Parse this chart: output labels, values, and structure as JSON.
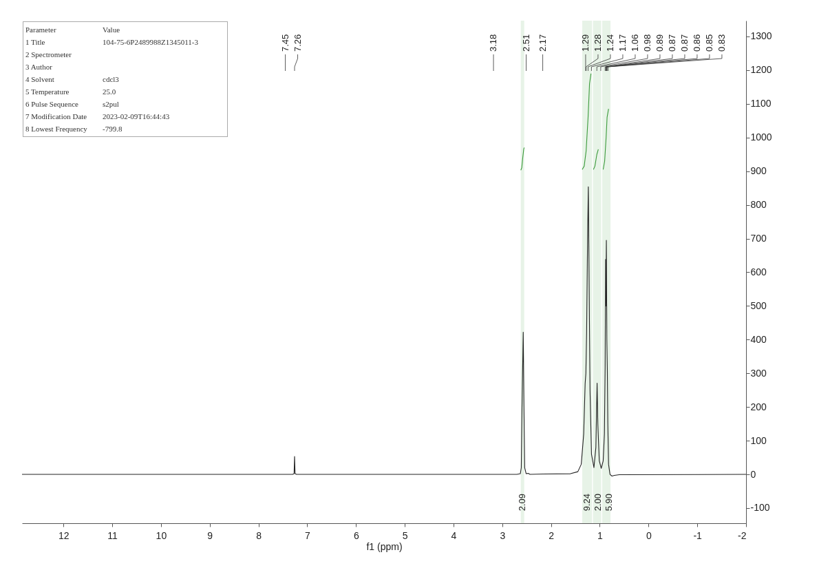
{
  "chart_data": {
    "type": "line",
    "xlabel": "f1 (ppm)",
    "xlim": [
      12.85,
      -2
    ],
    "ylim": [
      -145,
      1347
    ],
    "xticks": [
      12,
      11,
      10,
      9,
      8,
      7,
      6,
      5,
      4,
      3,
      2,
      1,
      0,
      -1,
      -2
    ],
    "yticks": [
      -100,
      0,
      100,
      200,
      300,
      400,
      500,
      600,
      700,
      800,
      900,
      1000,
      1100,
      1200,
      1300
    ],
    "bands": [
      {
        "axis": "x",
        "from": 2.62,
        "to": 2.55,
        "label": "2.09",
        "color": "#3a9a3a"
      },
      {
        "axis": "x",
        "from": 1.36,
        "to": 1.16,
        "label": "9.24",
        "color": "#3a9a3a"
      },
      {
        "axis": "x",
        "from": 1.14,
        "to": 0.97,
        "label": "2.00",
        "color": "#3a9a3a"
      },
      {
        "axis": "x",
        "from": 0.95,
        "to": 0.78,
        "label": "5.90",
        "color": "#3a9a3a"
      }
    ],
    "series": [
      {
        "color": "#222222",
        "x": [
          12.85,
          7.45,
          7.3,
          7.27,
          7.26,
          7.25,
          7.22,
          3.18,
          2.7,
          2.63,
          2.61,
          2.595,
          2.57,
          2.555,
          2.54,
          2.51,
          2.47,
          2.43,
          2.17,
          1.6,
          1.45,
          1.38,
          1.33,
          1.3,
          1.285,
          1.27,
          1.25,
          1.235,
          1.22,
          1.2,
          1.17,
          1.12,
          1.08,
          1.055,
          1.04,
          1.01,
          0.97,
          0.93,
          0.905,
          0.89,
          0.88,
          0.875,
          0.865,
          0.855,
          0.845,
          0.835,
          0.82,
          0.79,
          0.75,
          0.7,
          0.6,
          -2
        ],
        "values": [
          0,
          0,
          0,
          2,
          53,
          2,
          0,
          0,
          0,
          2,
          20,
          200,
          422,
          200,
          20,
          2,
          3,
          0,
          1,
          2,
          8,
          30,
          120,
          270,
          300,
          420,
          700,
          854,
          600,
          250,
          60,
          20,
          80,
          271,
          150,
          40,
          18,
          40,
          120,
          320,
          638,
          500,
          695,
          400,
          310,
          150,
          30,
          0,
          -5,
          -3,
          -1,
          0
        ]
      },
      {
        "color": "#3a9a3a",
        "x": [
          2.62,
          2.6,
          2.58,
          2.56,
          2.55,
          2.0,
          1.36,
          1.32,
          1.28,
          1.24,
          1.21,
          1.18,
          1.16,
          1.13,
          1.1,
          1.06,
          1.03,
          1.0,
          0.93,
          0.9,
          0.87,
          0.85,
          0.82
        ],
        "values": [
          903,
          910,
          940,
          965,
          970,
          null,
          905,
          915,
          960,
          1060,
          1160,
          1190,
          null,
          905,
          915,
          950,
          965,
          null,
          905,
          930,
          1000,
          1060,
          1085
        ]
      }
    ],
    "annotations": [
      "Parameter\tValue",
      "1 Title\t104-75-6P2489988Z1345011-3",
      "2 Spectrometer",
      "3 Author",
      "4 Solvent\tcdcl3",
      "5 Temperature\t25.0",
      "6 Pulse Sequence\ts2pul",
      "7 Modification Date\t2023-02-09T16:44:43",
      "8 Lowest Frequency\t-799.8",
      {
        "text": "7.45",
        "x": 7.45
      },
      {
        "text": "7.26",
        "x": 7.26
      },
      {
        "text": "3.18",
        "x": 3.18
      },
      {
        "text": "2.51",
        "x": 2.51
      },
      {
        "text": "2.17",
        "x": 2.17
      },
      {
        "text": "1.29",
        "x": 1.29
      },
      {
        "text": "1.28",
        "x": 1.28
      },
      {
        "text": "1.24",
        "x": 1.24
      },
      {
        "text": "1.17",
        "x": 1.17
      },
      {
        "text": "1.06",
        "x": 1.06
      },
      {
        "text": "0.98",
        "x": 0.98
      },
      {
        "text": "0.89",
        "x": 0.89
      },
      {
        "text": "0.87",
        "x": 0.87
      },
      {
        "text": "0.87",
        "x": 0.87
      },
      {
        "text": "0.86",
        "x": 0.86
      },
      {
        "text": "0.85",
        "x": 0.85
      },
      {
        "text": "0.83",
        "x": 0.83
      }
    ]
  }
}
